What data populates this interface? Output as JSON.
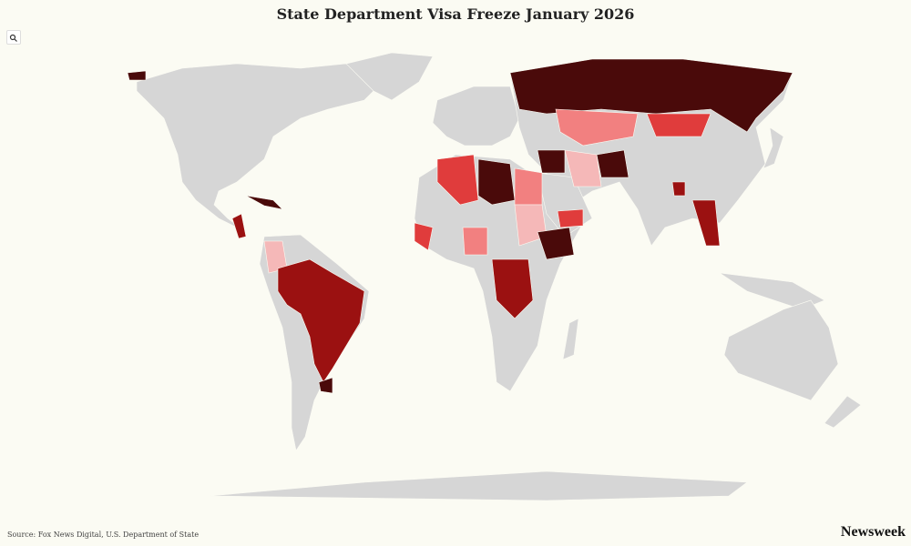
{
  "header": {
    "title": "State Department Visa Freeze January 2026"
  },
  "footer": {
    "source": "Source: Fox News Digital, U.S. Department of State",
    "brand": "Newsweek"
  }
}
